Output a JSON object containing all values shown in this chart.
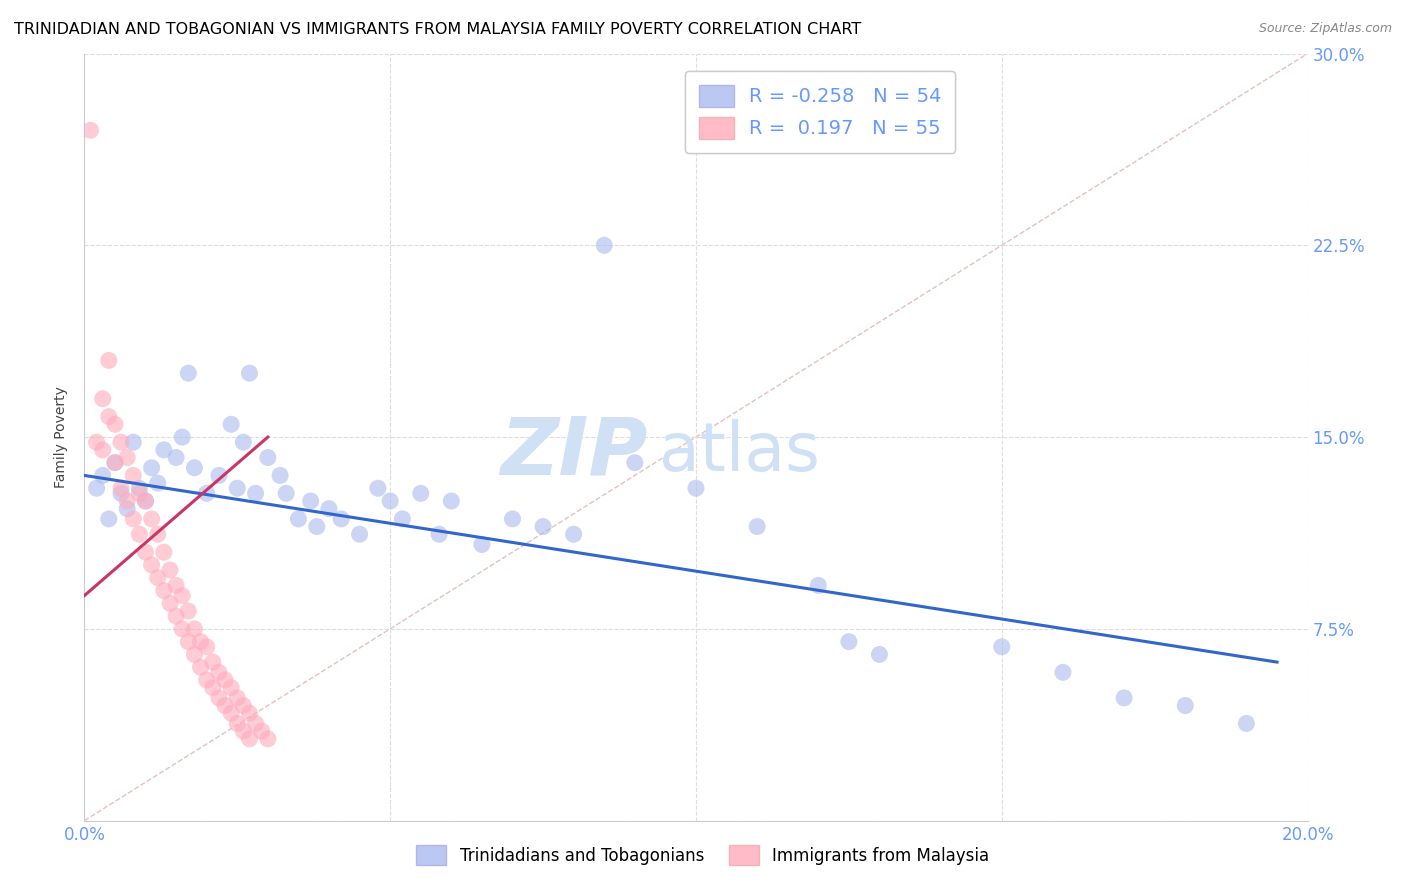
{
  "title": "TRINIDADIAN AND TOBAGONIAN VS IMMIGRANTS FROM MALAYSIA FAMILY POVERTY CORRELATION CHART",
  "source": "Source: ZipAtlas.com",
  "ylabel": "Family Poverty",
  "xlim": [
    0.0,
    0.2
  ],
  "ylim": [
    0.0,
    0.3
  ],
  "xtick_vals": [
    0.0,
    0.05,
    0.1,
    0.15,
    0.2
  ],
  "ytick_vals": [
    0.0,
    0.075,
    0.15,
    0.225,
    0.3
  ],
  "xtick_labels": [
    "0.0%",
    "",
    "",
    "",
    "20.0%"
  ],
  "ytick_labels": [
    "",
    "7.5%",
    "15.0%",
    "22.5%",
    "30.0%"
  ],
  "watermark_zip": "ZIP",
  "watermark_atlas": "atlas",
  "legend_blue_r": "-0.258",
  "legend_blue_n": "54",
  "legend_pink_r": "0.197",
  "legend_pink_n": "55",
  "blue_color": "#aabbee",
  "pink_color": "#ffaabb",
  "blue_scatter": [
    [
      0.002,
      0.13
    ],
    [
      0.003,
      0.135
    ],
    [
      0.004,
      0.118
    ],
    [
      0.005,
      0.14
    ],
    [
      0.006,
      0.128
    ],
    [
      0.007,
      0.122
    ],
    [
      0.008,
      0.148
    ],
    [
      0.009,
      0.13
    ],
    [
      0.01,
      0.125
    ],
    [
      0.011,
      0.138
    ],
    [
      0.012,
      0.132
    ],
    [
      0.013,
      0.145
    ],
    [
      0.015,
      0.142
    ],
    [
      0.016,
      0.15
    ],
    [
      0.017,
      0.175
    ],
    [
      0.018,
      0.138
    ],
    [
      0.02,
      0.128
    ],
    [
      0.022,
      0.135
    ],
    [
      0.024,
      0.155
    ],
    [
      0.025,
      0.13
    ],
    [
      0.026,
      0.148
    ],
    [
      0.027,
      0.175
    ],
    [
      0.028,
      0.128
    ],
    [
      0.03,
      0.142
    ],
    [
      0.032,
      0.135
    ],
    [
      0.033,
      0.128
    ],
    [
      0.035,
      0.118
    ],
    [
      0.037,
      0.125
    ],
    [
      0.038,
      0.115
    ],
    [
      0.04,
      0.122
    ],
    [
      0.042,
      0.118
    ],
    [
      0.045,
      0.112
    ],
    [
      0.048,
      0.13
    ],
    [
      0.05,
      0.125
    ],
    [
      0.052,
      0.118
    ],
    [
      0.055,
      0.128
    ],
    [
      0.058,
      0.112
    ],
    [
      0.06,
      0.125
    ],
    [
      0.065,
      0.108
    ],
    [
      0.07,
      0.118
    ],
    [
      0.075,
      0.115
    ],
    [
      0.08,
      0.112
    ],
    [
      0.085,
      0.225
    ],
    [
      0.09,
      0.14
    ],
    [
      0.1,
      0.13
    ],
    [
      0.11,
      0.115
    ],
    [
      0.12,
      0.092
    ],
    [
      0.125,
      0.07
    ],
    [
      0.13,
      0.065
    ],
    [
      0.15,
      0.068
    ],
    [
      0.16,
      0.058
    ],
    [
      0.17,
      0.048
    ],
    [
      0.18,
      0.045
    ],
    [
      0.19,
      0.038
    ]
  ],
  "pink_scatter": [
    [
      0.001,
      0.27
    ],
    [
      0.002,
      0.148
    ],
    [
      0.003,
      0.165
    ],
    [
      0.003,
      0.145
    ],
    [
      0.004,
      0.18
    ],
    [
      0.004,
      0.158
    ],
    [
      0.005,
      0.155
    ],
    [
      0.005,
      0.14
    ],
    [
      0.006,
      0.148
    ],
    [
      0.006,
      0.13
    ],
    [
      0.007,
      0.142
    ],
    [
      0.007,
      0.125
    ],
    [
      0.008,
      0.135
    ],
    [
      0.008,
      0.118
    ],
    [
      0.009,
      0.128
    ],
    [
      0.009,
      0.112
    ],
    [
      0.01,
      0.125
    ],
    [
      0.01,
      0.105
    ],
    [
      0.011,
      0.118
    ],
    [
      0.011,
      0.1
    ],
    [
      0.012,
      0.112
    ],
    [
      0.012,
      0.095
    ],
    [
      0.013,
      0.105
    ],
    [
      0.013,
      0.09
    ],
    [
      0.014,
      0.098
    ],
    [
      0.014,
      0.085
    ],
    [
      0.015,
      0.092
    ],
    [
      0.015,
      0.08
    ],
    [
      0.016,
      0.088
    ],
    [
      0.016,
      0.075
    ],
    [
      0.017,
      0.082
    ],
    [
      0.017,
      0.07
    ],
    [
      0.018,
      0.075
    ],
    [
      0.018,
      0.065
    ],
    [
      0.019,
      0.07
    ],
    [
      0.019,
      0.06
    ],
    [
      0.02,
      0.068
    ],
    [
      0.02,
      0.055
    ],
    [
      0.021,
      0.062
    ],
    [
      0.021,
      0.052
    ],
    [
      0.022,
      0.058
    ],
    [
      0.022,
      0.048
    ],
    [
      0.023,
      0.055
    ],
    [
      0.023,
      0.045
    ],
    [
      0.024,
      0.052
    ],
    [
      0.024,
      0.042
    ],
    [
      0.025,
      0.048
    ],
    [
      0.025,
      0.038
    ],
    [
      0.026,
      0.045
    ],
    [
      0.026,
      0.035
    ],
    [
      0.027,
      0.042
    ],
    [
      0.027,
      0.032
    ],
    [
      0.028,
      0.038
    ],
    [
      0.029,
      0.035
    ],
    [
      0.03,
      0.032
    ]
  ],
  "blue_trend_x": [
    0.0,
    0.195
  ],
  "blue_trend_y": [
    0.135,
    0.062
  ],
  "pink_trend_x": [
    0.0,
    0.03
  ],
  "pink_trend_y": [
    0.088,
    0.15
  ],
  "diagonal_line_x": [
    0.0,
    0.2
  ],
  "diagonal_line_y": [
    0.0,
    0.3
  ],
  "background_color": "#ffffff",
  "grid_color": "#dddddd",
  "tick_color": "#6699ff",
  "title_color": "#000000",
  "title_fontsize": 11.5,
  "axis_label_fontsize": 10,
  "tick_fontsize": 12,
  "watermark_fontsize_zip": 58,
  "watermark_fontsize_atlas": 48,
  "watermark_color": "#d0e0f5"
}
